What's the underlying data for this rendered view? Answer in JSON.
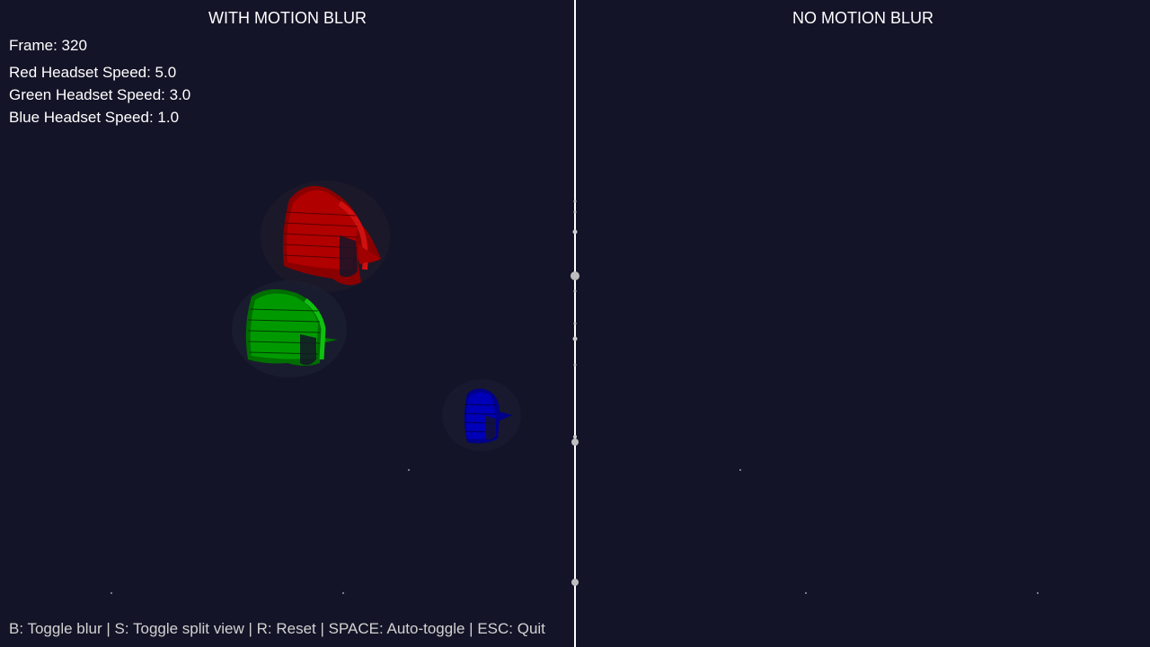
{
  "left_pane": {
    "title": "WITH MOTION BLUR",
    "frame_text": "Frame: 320",
    "speeds": [
      "Red Headset Speed: 5.0",
      "Green Headset Speed: 3.0",
      "Blue Headset Speed: 1.0"
    ]
  },
  "right_pane": {
    "title": "NO MOTION BLUR"
  },
  "controls_hint": "B: Toggle blur | S: Toggle split view | R: Reset | SPACE: Auto-toggle | ESC: Quit",
  "colors": {
    "background": "#141428",
    "divider": "#ffffff",
    "red_headset": "#c00000",
    "green_headset": "#00b000",
    "blue_headset": "#0000c8"
  },
  "icons": [
    "red-headset-icon",
    "green-headset-icon",
    "blue-headset-icon",
    "star-dot-icon"
  ]
}
